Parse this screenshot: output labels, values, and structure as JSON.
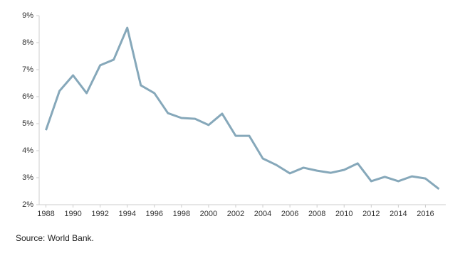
{
  "chart_data": {
    "type": "line",
    "x": [
      1988,
      1989,
      1990,
      1991,
      1992,
      1993,
      1994,
      1995,
      1996,
      1997,
      1998,
      1999,
      2000,
      2001,
      2002,
      2003,
      2004,
      2005,
      2006,
      2007,
      2008,
      2009,
      2010,
      2011,
      2012,
      2013,
      2014,
      2015,
      2016,
      2017
    ],
    "values": [
      4.76,
      6.21,
      6.79,
      6.13,
      7.16,
      7.37,
      8.55,
      6.42,
      6.13,
      5.39,
      5.21,
      5.18,
      4.95,
      5.37,
      4.55,
      4.55,
      3.71,
      3.47,
      3.16,
      3.37,
      3.26,
      3.18,
      3.29,
      3.53,
      2.87,
      3.03,
      2.87,
      3.05,
      2.97,
      2.58
    ],
    "color": "#86a8ba",
    "xlim": [
      1987.5,
      2017.5
    ],
    "xticks": [
      1988,
      1990,
      1992,
      1994,
      1996,
      1998,
      2000,
      2002,
      2004,
      2006,
      2008,
      2010,
      2012,
      2014,
      2016
    ],
    "ylim": [
      2,
      9
    ],
    "yticks": [
      {
        "value": 2,
        "label": "2%"
      },
      {
        "value": 3,
        "label": "3%"
      },
      {
        "value": 4,
        "label": "4%"
      },
      {
        "value": 5,
        "label": "5%"
      },
      {
        "value": 6,
        "label": "6%"
      },
      {
        "value": 7,
        "label": "7%"
      },
      {
        "value": 8,
        "label": "8%"
      },
      {
        "value": 9,
        "label": "9%"
      }
    ],
    "grid": false,
    "source": "Source: World Bank."
  }
}
